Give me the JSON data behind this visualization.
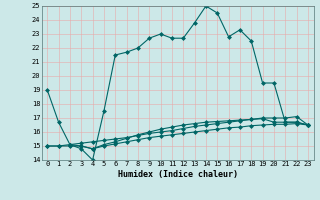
{
  "xlabel": "Humidex (Indice chaleur)",
  "xlim": [
    -0.5,
    23.5
  ],
  "ylim": [
    14,
    25
  ],
  "yticks": [
    14,
    15,
    16,
    17,
    18,
    19,
    20,
    21,
    22,
    23,
    24,
    25
  ],
  "xticks": [
    0,
    1,
    2,
    3,
    4,
    5,
    6,
    7,
    8,
    9,
    10,
    11,
    12,
    13,
    14,
    15,
    16,
    17,
    18,
    19,
    20,
    21,
    22,
    23
  ],
  "bg_color": "#cce8e8",
  "line_color": "#006666",
  "grid_color": "#aacccc",
  "line1_x": [
    0,
    1,
    2,
    3,
    4,
    5,
    6,
    7,
    8,
    9,
    10,
    11,
    12,
    13,
    14,
    15,
    16,
    17,
    18,
    19,
    20,
    21,
    22,
    23
  ],
  "line1_y": [
    19.0,
    16.7,
    15.1,
    14.8,
    14.0,
    17.5,
    21.5,
    21.7,
    22.0,
    22.7,
    23.0,
    22.7,
    22.7,
    23.8,
    25.0,
    24.5,
    22.8,
    23.3,
    22.5,
    19.5,
    19.5,
    16.7,
    16.7,
    16.5
  ],
  "line2_x": [
    0,
    1,
    2,
    3,
    4,
    5,
    6,
    7,
    8,
    9,
    10,
    11,
    12,
    13,
    14,
    15,
    16,
    17,
    18,
    19,
    20,
    21,
    22,
    23
  ],
  "line2_y": [
    15.0,
    15.0,
    15.1,
    15.2,
    15.3,
    15.4,
    15.5,
    15.6,
    15.75,
    15.9,
    16.0,
    16.1,
    16.25,
    16.4,
    16.5,
    16.6,
    16.7,
    16.8,
    16.9,
    17.0,
    17.0,
    17.0,
    17.1,
    16.5
  ],
  "line3_x": [
    0,
    1,
    2,
    3,
    4,
    5,
    6,
    7,
    8,
    9,
    10,
    11,
    12,
    13,
    14,
    15,
    16,
    17,
    18,
    19,
    20,
    21,
    22,
    23
  ],
  "line3_y": [
    15.0,
    15.0,
    15.0,
    15.0,
    14.8,
    15.0,
    15.15,
    15.3,
    15.45,
    15.6,
    15.7,
    15.8,
    15.9,
    16.0,
    16.1,
    16.2,
    16.3,
    16.35,
    16.45,
    16.5,
    16.55,
    16.55,
    16.6,
    16.5
  ],
  "line4_x": [
    2,
    3,
    4,
    5,
    6,
    7,
    8,
    9,
    10,
    11,
    12,
    13,
    14,
    15,
    16,
    17,
    18,
    19,
    20,
    21,
    22,
    23
  ],
  "line4_y": [
    15.1,
    15.0,
    14.8,
    15.1,
    15.3,
    15.55,
    15.8,
    16.0,
    16.2,
    16.35,
    16.5,
    16.6,
    16.7,
    16.75,
    16.8,
    16.85,
    16.9,
    16.95,
    16.7,
    16.7,
    16.7,
    16.5
  ],
  "marker_size": 2.5,
  "linewidth": 0.8
}
